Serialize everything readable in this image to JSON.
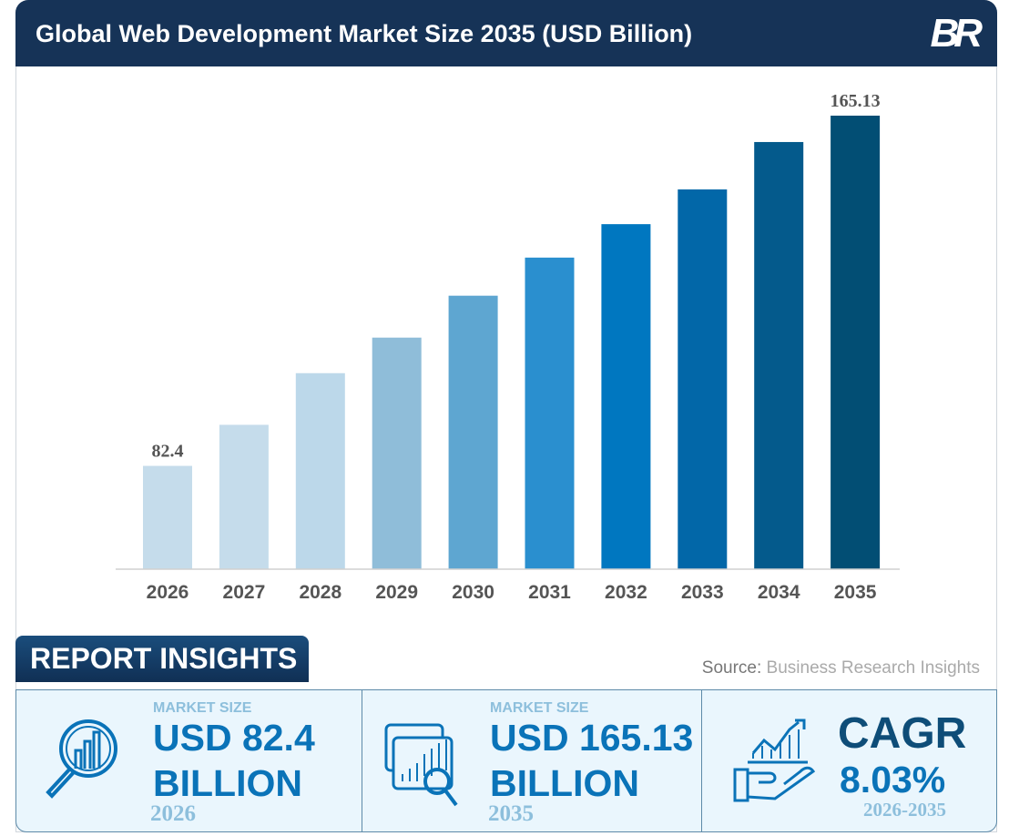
{
  "header": {
    "title": "Global Web Development Market Size 2035 (USD Billion)",
    "logo": "BR"
  },
  "chart_data": {
    "type": "bar",
    "title": "Global Web Development Market Size 2035 (USD Billion)",
    "categories": [
      "2026",
      "2027",
      "2028",
      "2029",
      "2030",
      "2031",
      "2032",
      "2033",
      "2034",
      "2035"
    ],
    "values": [
      82.4,
      92.1,
      104.3,
      112.7,
      122.6,
      131.6,
      139.5,
      147.7,
      158.9,
      165.13
    ],
    "data_labels": {
      "0": "82.4",
      "9": "165.13"
    },
    "ylim": [
      58,
      165.13
    ],
    "grid": false,
    "colors": [
      "#c5dceb",
      "#c5dceb",
      "#bcd8ea",
      "#8fbdd9",
      "#5ea6d1",
      "#2a8fcf",
      "#0077c0",
      "#0267a8",
      "#045a8c",
      "#024e74"
    ]
  },
  "insights": {
    "heading": "REPORT INSIGHTS",
    "source_label": "Source:",
    "source_name": "Business Research Insights",
    "cards": [
      {
        "label": "MARKET SIZE",
        "value": "USD 82.4",
        "unit": "BILLION",
        "year": "2026",
        "icon": "magnifier-chart-icon"
      },
      {
        "label": "MARKET SIZE",
        "value": "USD 165.13",
        "unit": "BILLION",
        "year": "2035",
        "icon": "browser-analytics-icon"
      },
      {
        "label": "CAGR",
        "value": "8.03%",
        "year": "2026-2035",
        "icon": "growth-hand-icon"
      }
    ]
  }
}
